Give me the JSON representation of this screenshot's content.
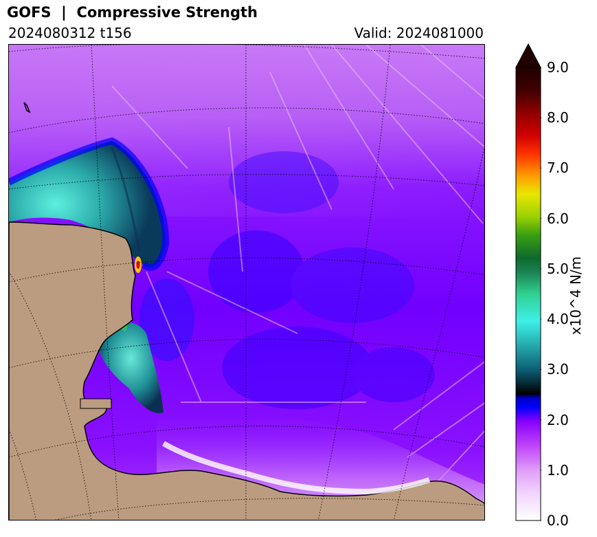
{
  "header": {
    "title": "GOFS  |  Compressive Strength",
    "run": "2024080312 t156",
    "valid": "Valid: 2024081000"
  },
  "colorbar": {
    "label": "x10^4 N/m",
    "ticks": [
      "0.0",
      "1.0",
      "2.0",
      "3.0",
      "4.0",
      "5.0",
      "6.0",
      "7.0",
      "8.0",
      "9.0"
    ],
    "min": 0.0,
    "max": 9.0,
    "extend": "max",
    "colors": {
      "land": "#bc9c80",
      "ocean_base": "#7a00ff",
      "low": "#e9b6fd",
      "mid": "#0000ff",
      "teal": "#30d0c8",
      "green": "#16a34a",
      "yellow": "#e8e800",
      "red": "#dd0000",
      "max": "#200000"
    }
  },
  "map": {
    "gridlines": "dotted",
    "coastline": "black"
  }
}
